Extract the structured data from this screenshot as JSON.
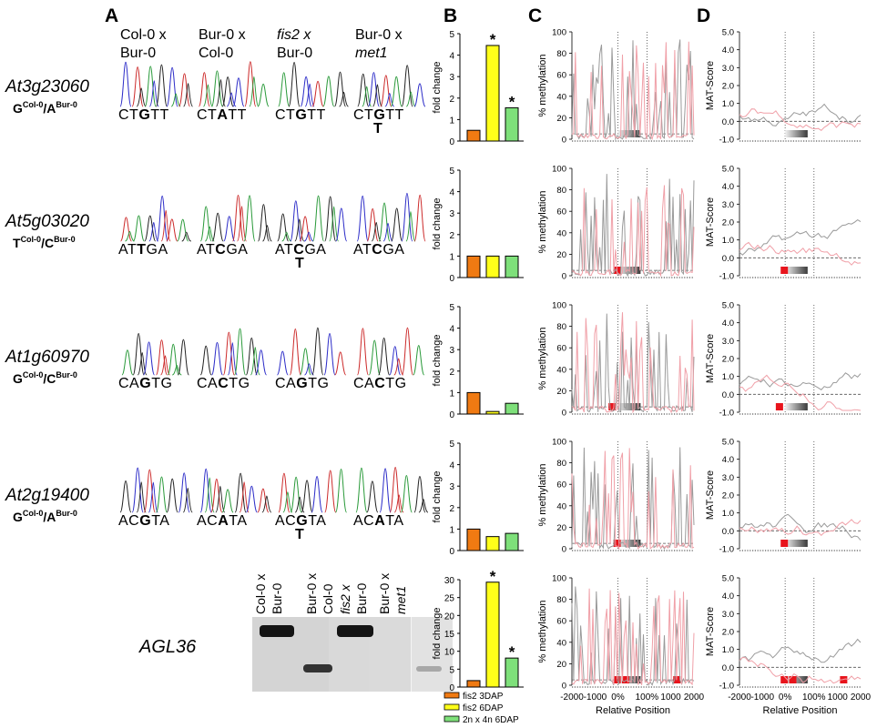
{
  "panel_labels": [
    "A",
    "B",
    "C",
    "D"
  ],
  "column_headers": [
    {
      "line1": "Col-0 x",
      "line2": "Bur-0"
    },
    {
      "line1": "Bur-0 x",
      "line2": "Col-0"
    },
    {
      "line1": "fis2 x",
      "line2": "Bur-0"
    },
    {
      "line1": "Bur-0 x",
      "line2": "met1"
    }
  ],
  "genes": [
    {
      "name": "At3g23060",
      "snp_a": "G",
      "sup_a": "Col-0",
      "sep": "/",
      "snp_b": "A",
      "sup_b": "Bur-0",
      "seqs": [
        {
          "pre": "CT",
          "mid": "G",
          "post": "TT",
          "alt": ""
        },
        {
          "pre": "CT",
          "mid": "A",
          "post": "TT",
          "alt": ""
        },
        {
          "pre": "CT",
          "mid": "G",
          "post": "TT",
          "alt": ""
        },
        {
          "pre": "CT",
          "mid": "G",
          "post": "TT",
          "alt": "T"
        }
      ]
    },
    {
      "name": "At5g03020",
      "snp_a": "T",
      "sup_a": "Col-0",
      "sep": "/",
      "snp_b": "C",
      "sup_b": "Bur-0",
      "seqs": [
        {
          "pre": "AT",
          "mid": "T",
          "post": "GA",
          "alt": ""
        },
        {
          "pre": "AT",
          "mid": "C",
          "post": "GA",
          "alt": ""
        },
        {
          "pre": "AT",
          "mid": "C",
          "post": "GA",
          "alt": "T"
        },
        {
          "pre": "AT",
          "mid": "C",
          "post": "GA",
          "alt": ""
        }
      ]
    },
    {
      "name": "At1g60970",
      "snp_a": "G",
      "sup_a": "Col-0",
      "sep": "/",
      "snp_b": "C",
      "sup_b": "Bur-0",
      "seqs": [
        {
          "pre": "CA",
          "mid": "G",
          "post": "TG",
          "alt": ""
        },
        {
          "pre": "CA",
          "mid": "C",
          "post": "TG",
          "alt": ""
        },
        {
          "pre": "CA",
          "mid": "G",
          "post": "TG",
          "alt": ""
        },
        {
          "pre": "CA",
          "mid": "C",
          "post": "TG",
          "alt": ""
        }
      ]
    },
    {
      "name": "At2g19400",
      "snp_a": "G",
      "sup_a": "Col-0",
      "sep": "/",
      "snp_b": "A",
      "sup_b": "Bur-0",
      "seqs": [
        {
          "pre": "AC",
          "mid": "G",
          "post": "TA",
          "alt": ""
        },
        {
          "pre": "AC",
          "mid": "A",
          "post": "TA",
          "alt": ""
        },
        {
          "pre": "AC",
          "mid": "G",
          "post": "TA",
          "alt": "T"
        },
        {
          "pre": "AC",
          "mid": "A",
          "post": "TA",
          "alt": ""
        }
      ]
    }
  ],
  "agl36": {
    "name": "AGL36",
    "lanes": [
      {
        "line1": "Col-0 x",
        "line2": "Bur-0"
      },
      {
        "line1": "Bur-0 x",
        "line2": "Col-0"
      },
      {
        "line1": "fis2 x",
        "line2": "Bur-0"
      },
      {
        "line1": "Bur-0 x",
        "line2": "met1"
      }
    ]
  },
  "chart_data": [
    {
      "type": "bar",
      "panel": "B",
      "row": 1,
      "ylabel": "fold change",
      "ylim": [
        0,
        5
      ],
      "yticks": [
        "0",
        "1",
        "2",
        "3",
        "4",
        "5"
      ],
      "series_names": [
        "fis2 3DAP",
        "fis2 6DAP",
        "2n x 4n 6DAP"
      ],
      "values": [
        0.5,
        4.45,
        1.55
      ],
      "significant": [
        false,
        true,
        true
      ]
    },
    {
      "type": "bar",
      "panel": "B",
      "row": 2,
      "ylabel": "fold change",
      "ylim": [
        0,
        5
      ],
      "yticks": [
        "0",
        "1",
        "2",
        "3",
        "4",
        "5"
      ],
      "series_names": [
        "fis2 3DAP",
        "fis2 6DAP",
        "2n x 4n 6DAP"
      ],
      "values": [
        1.0,
        1.0,
        1.0
      ],
      "significant": [
        false,
        false,
        false
      ]
    },
    {
      "type": "bar",
      "panel": "B",
      "row": 3,
      "ylabel": "fold change",
      "ylim": [
        0,
        5
      ],
      "yticks": [
        "0",
        "1",
        "2",
        "3",
        "4",
        "5"
      ],
      "series_names": [
        "fis2 3DAP",
        "fis2 6DAP",
        "2n x 4n 6DAP"
      ],
      "values": [
        1.0,
        0.12,
        0.5
      ],
      "significant": [
        false,
        false,
        false
      ]
    },
    {
      "type": "bar",
      "panel": "B",
      "row": 4,
      "ylabel": "fold change",
      "ylim": [
        0,
        5
      ],
      "yticks": [
        "0",
        "1",
        "2",
        "3",
        "4",
        "5"
      ],
      "series_names": [
        "fis2 3DAP",
        "fis2 6DAP",
        "2n x 4n 6DAP"
      ],
      "values": [
        1.0,
        0.65,
        0.8
      ],
      "significant": [
        false,
        false,
        false
      ]
    },
    {
      "type": "bar",
      "panel": "B",
      "row": 5,
      "ylabel": "fold change",
      "ylim": [
        0,
        30
      ],
      "yticks": [
        "0",
        "5",
        "10",
        "15",
        "20",
        "25",
        "30"
      ],
      "series_names": [
        "fis2 3DAP",
        "fis2 6DAP",
        "2n x 4n 6DAP"
      ],
      "values": [
        1.8,
        29.3,
        8.1
      ],
      "significant": [
        false,
        true,
        true
      ]
    },
    {
      "type": "line",
      "panel": "C",
      "ylabel": "% methylation",
      "xlabel": "Relative Position",
      "ylim": [
        0,
        100
      ],
      "yticks": [
        "0",
        "20",
        "40",
        "60",
        "80",
        "100"
      ],
      "xticks": [
        "-2000",
        "-1000",
        "0%",
        "100%",
        "1000",
        "2000"
      ],
      "threshold": 5,
      "rows": 5
    },
    {
      "type": "line",
      "panel": "D",
      "ylabel": "MAT-Score",
      "xlabel": "Relative Position",
      "ylim": [
        -1.0,
        5.0
      ],
      "yticks": [
        "-1.0",
        "0.0",
        "1.0",
        "2.0",
        "3.0",
        "4.0",
        "5.0"
      ],
      "xticks": [
        "-2000",
        "-1000",
        "0%",
        "100%",
        "1000",
        "2000"
      ],
      "threshold": 0.0,
      "rows": 5
    }
  ],
  "legend": [
    {
      "label": "fis2 3DAP",
      "color": "#f07a12"
    },
    {
      "label": "fis2 6DAP",
      "color": "#ffff1a"
    },
    {
      "label": "2n x 4n 6DAP",
      "color": "#7ee07a"
    }
  ],
  "significance_mark": "*",
  "colors": {
    "orange": "#f07a12",
    "yellow": "#ffff1a",
    "green": "#7ee07a",
    "red_marker": "#e8141c",
    "trace_gray": "#9a9a9a",
    "trace_pink": "#f0a0a8"
  }
}
